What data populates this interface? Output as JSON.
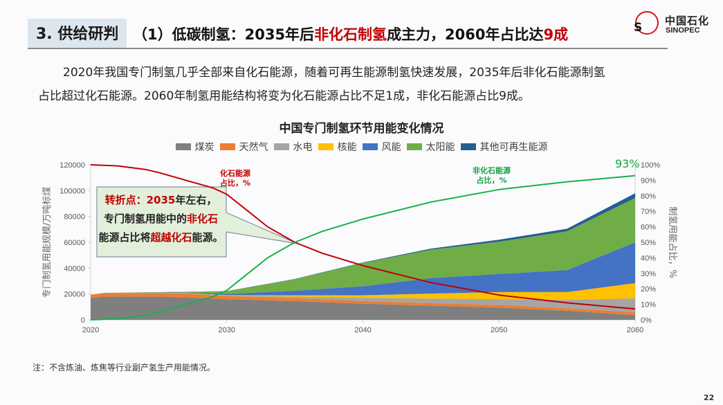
{
  "header": {
    "section_tag": "3. 供给研判",
    "title_parts": [
      {
        "text": "（1）低碳制氢：2035年后",
        "red": false
      },
      {
        "text": "非化石制氢",
        "red": true
      },
      {
        "text": "成主力，2060年占比达",
        "red": false
      },
      {
        "text": "9成",
        "red": true
      }
    ]
  },
  "logo": {
    "cn": "中国石化",
    "en": "SINOPEC",
    "mark": "S"
  },
  "paragraph": {
    "line1": "2020年我国专门制氢几乎全部来自化石能源，随着可再生能源制氢快速发展，2035年后非化石能源制氢",
    "line2": "占比超过化石能源。2060年制氢用能结构将变为化石能源占比不足1成，非化石能源占比9成。"
  },
  "callout": {
    "line1_red": "转折点：2035",
    "line1_rest": "年左右，",
    "line2_plain": "专门制氢用能中的",
    "line2_red": "非化石",
    "line3_plain_a": "能源占比将",
    "line3_red": "超越化石",
    "line3_plain_b": "能源。"
  },
  "annotations": {
    "fossil": [
      "化石能源",
      "占比，%"
    ],
    "nonfossil": [
      "非化石能源",
      "占比，%"
    ],
    "end_value": "93%"
  },
  "note": "注：不含炼油、炼焦等行业副产氢生产用能情况。",
  "page_number": "22",
  "chart_data": {
    "type": "area",
    "title": "中国专门制氢环节用能变化情况",
    "xlabel": "",
    "ylabel": "专门制氢用能规模/万吨标煤",
    "y2label": "制氢用能占比，%",
    "x": [
      2020,
      2021,
      2025,
      2027,
      2030,
      2035,
      2040,
      2045,
      2050,
      2055,
      2060
    ],
    "xticks": [
      "2020",
      "2030",
      "2040",
      "2050",
      "2060"
    ],
    "xlim": [
      2020,
      2060
    ],
    "ylim": [
      0,
      120000
    ],
    "yticks": [
      "0",
      "20000",
      "40000",
      "60000",
      "80000",
      "100000",
      "120000"
    ],
    "y2lim": [
      0,
      100
    ],
    "y2ticks": [
      "0%",
      "10%",
      "20%",
      "30%",
      "40%",
      "50%",
      "60%",
      "70%",
      "80%",
      "90%",
      "100%"
    ],
    "legend_position": "top",
    "stacked_series": [
      {
        "name": "煤炭",
        "color": "#7f7f7f",
        "values": [
          17000,
          18000,
          18000,
          17500,
          16000,
          14500,
          12500,
          11000,
          9500,
          7000,
          3700
        ]
      },
      {
        "name": "天然气",
        "color": "#ed7d31",
        "values": [
          2500,
          2800,
          2800,
          2800,
          2500,
          2300,
          2000,
          2000,
          2000,
          2000,
          2200
        ]
      },
      {
        "name": "水电",
        "color": "#a5a5a5",
        "values": [
          0,
          0,
          100,
          200,
          300,
          1200,
          2500,
          3500,
          4500,
          6500,
          10700
        ]
      },
      {
        "name": "核能",
        "color": "#ffc000",
        "values": [
          0,
          0,
          100,
          200,
          300,
          1000,
          2000,
          3800,
          5500,
          6000,
          11800
        ]
      },
      {
        "name": "风能",
        "color": "#4472c4",
        "values": [
          0,
          0,
          200,
          400,
          1000,
          3500,
          7000,
          12000,
          14000,
          17000,
          31600
        ]
      },
      {
        "name": "太阳能",
        "color": "#70ad47",
        "values": [
          0,
          100,
          300,
          600,
          2000,
          9000,
          18000,
          22000,
          25000,
          30000,
          34300
        ]
      },
      {
        "name": "其他可再生能源",
        "color": "#255e91",
        "values": [
          0,
          0,
          0,
          0,
          100,
          200,
          400,
          800,
          1500,
          2000,
          3700
        ]
      }
    ],
    "line_series": [
      {
        "name": "化石能源占比，%",
        "color": "#c00000",
        "axis": "right",
        "x": [
          2020,
          2022,
          2024,
          2025,
          2027,
          2029,
          2030,
          2031,
          2033,
          2035,
          2037,
          2040,
          2045,
          2050,
          2055,
          2060
        ],
        "values": [
          100,
          99.3,
          97,
          95,
          90,
          85,
          81,
          74,
          60,
          50,
          43,
          35,
          24,
          16,
          11,
          7
        ]
      },
      {
        "name": "非化石能源占比，%",
        "color": "#18b04a",
        "axis": "right",
        "x": [
          2020,
          2022,
          2024,
          2025,
          2027,
          2029,
          2030,
          2031,
          2033,
          2035,
          2037,
          2040,
          2045,
          2050,
          2055,
          2060
        ],
        "values": [
          0,
          0.7,
          3,
          5,
          10,
          15,
          19,
          26,
          40,
          50,
          57,
          65,
          76,
          84,
          89,
          93
        ]
      }
    ]
  }
}
